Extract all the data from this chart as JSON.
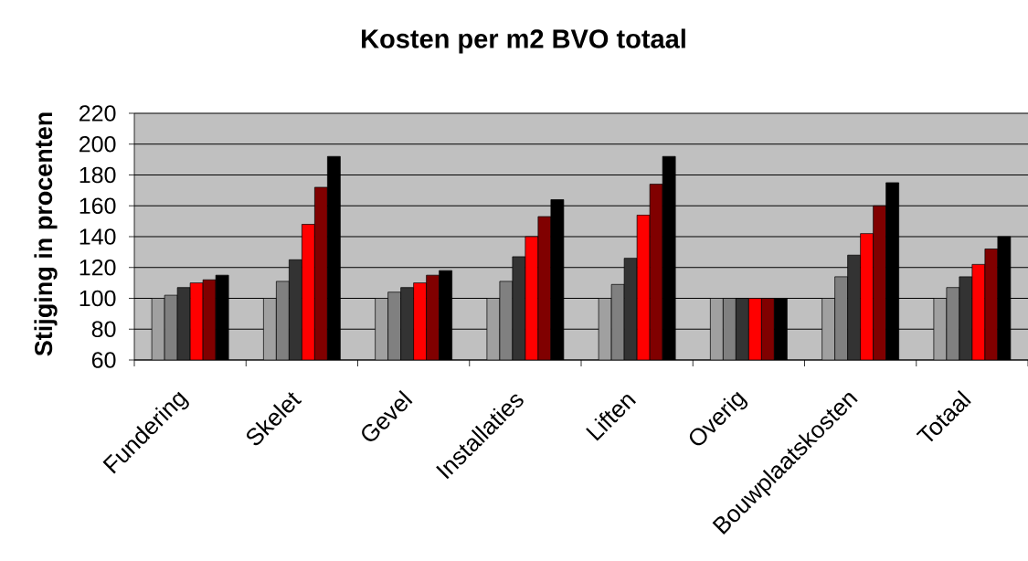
{
  "chart_data": {
    "type": "bar",
    "title": "Kosten per m2 BVO totaal",
    "ylabel": "Stijging in procenten",
    "categories": [
      "Fundering",
      "Skelet",
      "Gevel",
      "Installaties",
      "Liften",
      "Overig",
      "Bouwplaatskosten",
      "Totaal"
    ],
    "series": [
      {
        "color": "#a0a0a0",
        "values": [
          100,
          100,
          100,
          100,
          100,
          100,
          100,
          100
        ]
      },
      {
        "color": "#808080",
        "values": [
          102,
          111,
          104,
          111,
          109,
          100,
          114,
          107
        ]
      },
      {
        "color": "#333333",
        "values": [
          107,
          125,
          107,
          127,
          126,
          100,
          128,
          114
        ]
      },
      {
        "color": "#ff0000",
        "values": [
          110,
          148,
          110,
          140,
          154,
          100,
          142,
          122
        ]
      },
      {
        "color": "#800000",
        "values": [
          112,
          172,
          115,
          153,
          174,
          100,
          160,
          132
        ]
      },
      {
        "color": "#000000",
        "values": [
          115,
          192,
          118,
          164,
          192,
          100,
          175,
          140
        ]
      }
    ],
    "ylim": [
      60,
      220
    ],
    "yticks": [
      60,
      80,
      100,
      120,
      140,
      160,
      180,
      200,
      220
    ],
    "grid": "y"
  }
}
